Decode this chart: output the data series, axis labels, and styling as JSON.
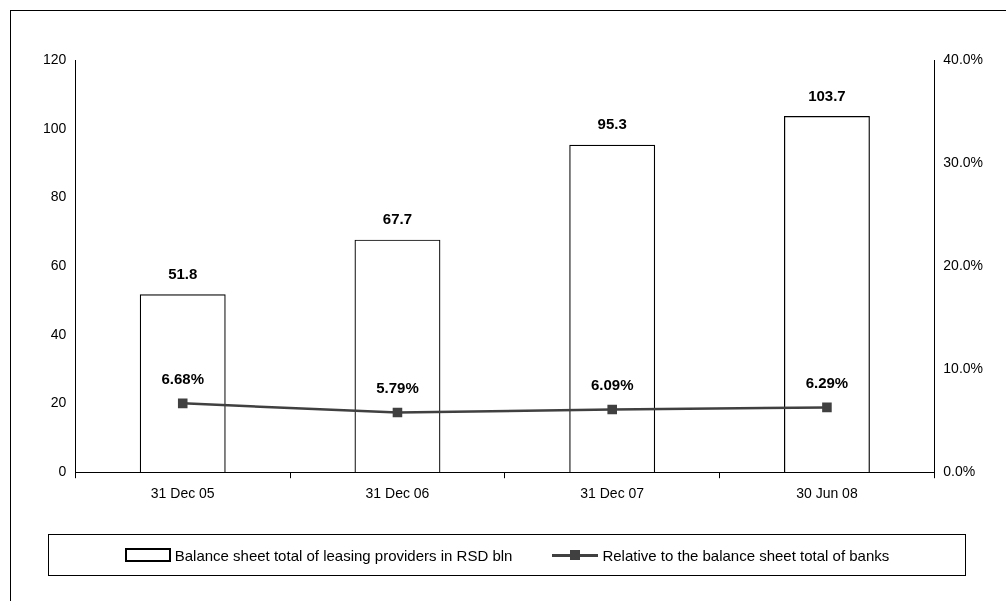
{
  "chart_data": {
    "type": "bar",
    "categories": [
      "31 Dec 05",
      "31 Dec 06",
      "31 Dec 07",
      "30 Jun 08"
    ],
    "series": [
      {
        "name": "Balance sheet total of leasing providers in RSD bln",
        "type": "bar",
        "color": "#000000",
        "values": [
          51.8,
          67.7,
          95.3,
          103.7
        ],
        "value_labels": [
          "51.8",
          "67.7",
          "95.3",
          "103.7"
        ]
      },
      {
        "name": "Relative to the balance sheet total of banks",
        "type": "line",
        "axis": "y2",
        "color": "#404040",
        "marker": "square",
        "values": [
          6.68,
          5.79,
          6.09,
          6.29
        ],
        "value_labels": [
          "6.68%",
          "5.79%",
          "6.09%",
          "6.29%"
        ]
      }
    ],
    "ylim": [
      0,
      120
    ],
    "yticks": [
      0,
      20,
      40,
      60,
      80,
      100,
      120
    ],
    "y2lim": [
      0,
      40
    ],
    "y2ticks": [
      {
        "value": 0,
        "label": "0.0%"
      },
      {
        "value": 10,
        "label": "10.0%"
      },
      {
        "value": 20,
        "label": "20.0%"
      },
      {
        "value": 30,
        "label": "30.0%"
      },
      {
        "value": 40,
        "label": "40.0%"
      }
    ],
    "grid": false,
    "legend": "bottom"
  }
}
